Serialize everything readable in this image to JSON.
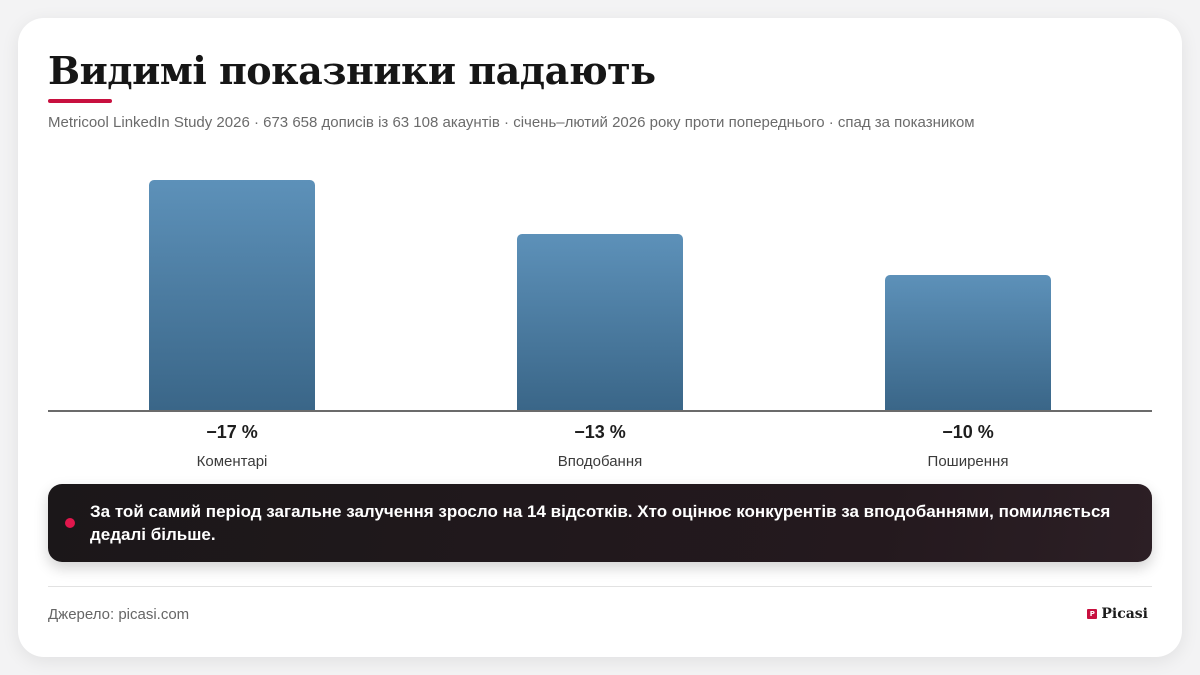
{
  "header": {
    "title": "Видимі показники падають",
    "subtitle": "Metricool LinkedIn Study 2026 · 673 658 дописів із 63 108 акаунтів · січень–лютий 2026 року проти попереднього · спад за показником"
  },
  "chart_data": {
    "type": "bar",
    "categories": [
      "Коментарі",
      "Вподобання",
      "Поширення"
    ],
    "values": [
      -17,
      -13,
      -10
    ],
    "value_labels": [
      "−17 %",
      "−13 %",
      "−10 %"
    ],
    "unit": "%",
    "ylim": [
      0,
      17
    ],
    "grid": false,
    "legend": "none",
    "bar_color": "#4a7aa0"
  },
  "callout": {
    "text": "За той самий період загальне залучення зросло на 14 відсотків. Хто оцінює конкурентів за вподобаннями, помиляється дедалі більше.",
    "dot_color": "#e0174c"
  },
  "footer": {
    "source": "Джерело: picasi.com",
    "brand": "Picasi",
    "brand_icon": "picasi-logo-icon"
  },
  "colors": {
    "accent": "#c8103f",
    "background": "#ffffff"
  }
}
